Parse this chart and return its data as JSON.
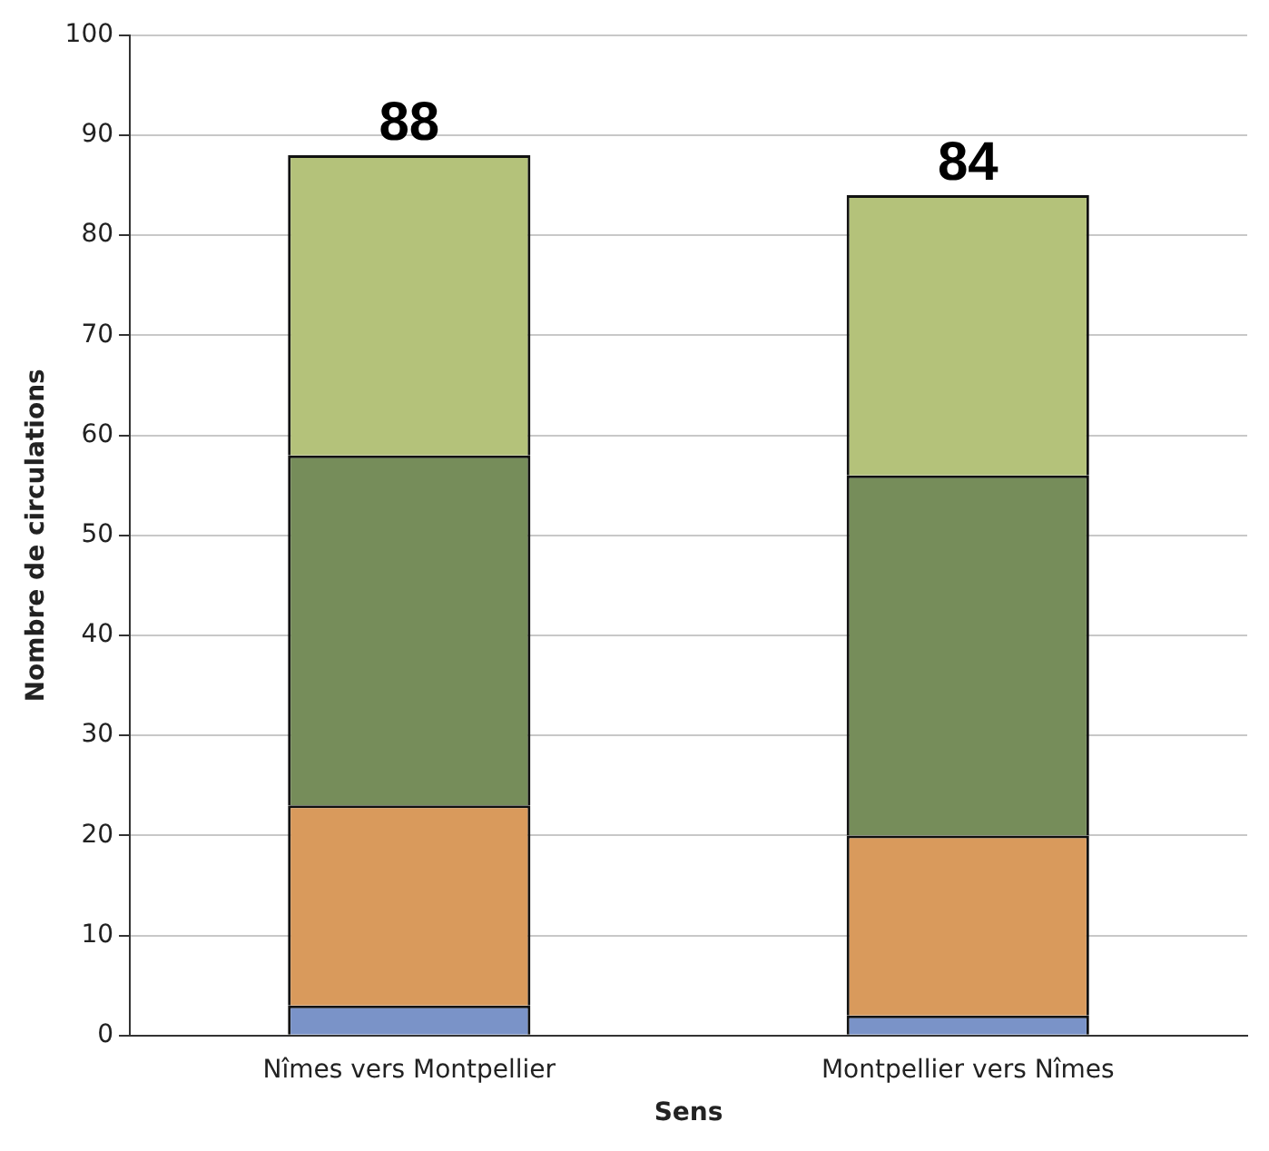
{
  "chart_data": {
    "type": "bar",
    "stacked": true,
    "xlabel": "Sens",
    "ylabel": "Nombre de circulations",
    "categories": [
      "Nîmes vers Montpellier",
      "Montpellier vers Nîmes"
    ],
    "series": [
      {
        "color": "#7a93c8",
        "values": [
          3,
          2
        ]
      },
      {
        "color": "#d99a5c",
        "values": [
          20,
          18
        ]
      },
      {
        "color": "#768d5a",
        "values": [
          35,
          36
        ]
      },
      {
        "color": "#b4c27a",
        "values": [
          30,
          28
        ]
      }
    ],
    "ylim": [
      0,
      100
    ],
    "yticks": [
      0,
      10,
      20,
      30,
      40,
      50,
      60,
      70,
      80,
      90,
      100
    ],
    "grid": "y",
    "totals": [
      "88",
      "84"
    ]
  }
}
